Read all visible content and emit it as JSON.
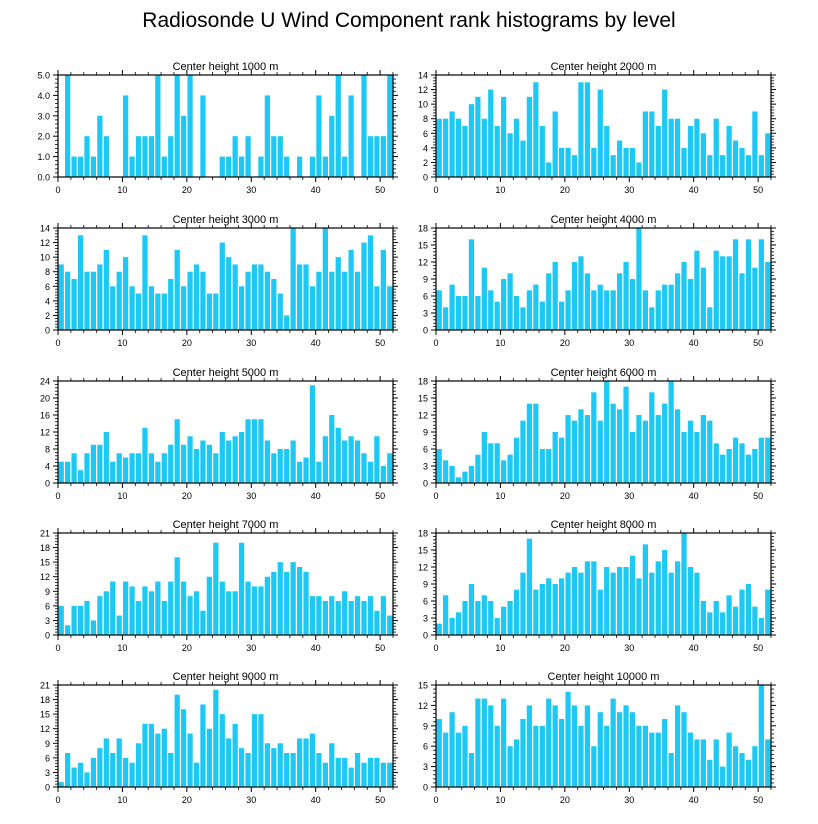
{
  "figure": {
    "title": "Radiosonde U Wind Component rank histograms by level",
    "bar_color": "#1ec8f5",
    "axis_color": "#000000"
  },
  "chart_data": [
    {
      "type": "bar",
      "title": "Center height 1000 m",
      "x": [
        0,
        1,
        2,
        3,
        4,
        5,
        6,
        7,
        8,
        9,
        10,
        11,
        12,
        13,
        14,
        15,
        16,
        17,
        18,
        19,
        20,
        21,
        22,
        23,
        24,
        25,
        26,
        27,
        28,
        29,
        30,
        31,
        32,
        33,
        34,
        35,
        36,
        37,
        38,
        39,
        40,
        41,
        42,
        43,
        44,
        45,
        46,
        47,
        48,
        49,
        50,
        51
      ],
      "values": [
        0,
        5,
        1,
        1,
        2,
        1,
        3,
        2,
        0,
        0,
        4,
        1,
        2,
        2,
        2,
        5,
        1,
        2,
        5,
        3,
        5,
        0,
        4,
        0,
        0,
        1,
        1,
        2,
        1,
        2,
        0,
        1,
        4,
        2,
        2,
        1,
        0,
        1,
        0,
        1,
        4,
        1,
        3,
        5,
        1,
        4,
        0,
        5,
        2,
        2,
        2,
        5
      ],
      "xlim": [
        0,
        52
      ],
      "ylim": [
        0,
        5
      ],
      "yticks": [
        0,
        1,
        2,
        3,
        4,
        5
      ],
      "ytick_labels": [
        "0.0",
        "1.0",
        "2.0",
        "3.0",
        "4.0",
        "5.0"
      ],
      "xticks": [
        0,
        10,
        20,
        30,
        40,
        50
      ],
      "xtick_labels": [
        "0",
        "10",
        "20",
        "30",
        "40",
        "50"
      ]
    },
    {
      "type": "bar",
      "title": "Center height 2000 m",
      "x": [
        0,
        1,
        2,
        3,
        4,
        5,
        6,
        7,
        8,
        9,
        10,
        11,
        12,
        13,
        14,
        15,
        16,
        17,
        18,
        19,
        20,
        21,
        22,
        23,
        24,
        25,
        26,
        27,
        28,
        29,
        30,
        31,
        32,
        33,
        34,
        35,
        36,
        37,
        38,
        39,
        40,
        41,
        42,
        43,
        44,
        45,
        46,
        47,
        48,
        49,
        50,
        51
      ],
      "values": [
        8,
        8,
        9,
        8,
        7,
        10,
        11,
        8,
        12,
        7,
        11,
        6,
        8,
        5,
        11,
        13,
        7,
        2,
        9,
        4,
        4,
        3,
        13,
        13,
        4,
        12,
        7,
        3,
        5,
        4,
        4,
        2,
        9,
        9,
        7,
        12,
        8,
        8,
        4,
        7,
        8,
        6,
        3,
        8,
        3,
        7,
        5,
        4,
        3,
        9,
        3,
        6
      ],
      "xlim": [
        0,
        52
      ],
      "ylim": [
        0,
        14
      ],
      "yticks": [
        0,
        2,
        4,
        6,
        8,
        10,
        12,
        14
      ],
      "ytick_labels": [
        "0",
        "2",
        "4",
        "6",
        "8",
        "10",
        "12",
        "14"
      ],
      "xticks": [
        0,
        10,
        20,
        30,
        40,
        50
      ],
      "xtick_labels": [
        "0",
        "10",
        "20",
        "30",
        "40",
        "50"
      ]
    },
    {
      "type": "bar",
      "title": "Center height 3000 m",
      "x": [
        0,
        1,
        2,
        3,
        4,
        5,
        6,
        7,
        8,
        9,
        10,
        11,
        12,
        13,
        14,
        15,
        16,
        17,
        18,
        19,
        20,
        21,
        22,
        23,
        24,
        25,
        26,
        27,
        28,
        29,
        30,
        31,
        32,
        33,
        34,
        35,
        36,
        37,
        38,
        39,
        40,
        41,
        42,
        43,
        44,
        45,
        46,
        47,
        48,
        49,
        50,
        51
      ],
      "values": [
        9,
        8,
        7,
        13,
        8,
        8,
        9,
        11,
        6,
        8,
        10,
        6,
        5,
        13,
        6,
        5,
        5,
        7,
        11,
        6,
        8,
        9,
        8,
        5,
        5,
        12,
        10,
        9,
        6,
        8,
        9,
        9,
        8,
        7,
        5,
        2,
        14,
        9,
        9,
        6,
        8,
        14,
        8,
        10,
        8,
        11,
        8,
        12,
        13,
        6,
        11,
        6
      ],
      "xlim": [
        0,
        52
      ],
      "ylim": [
        0,
        14
      ],
      "yticks": [
        0,
        2,
        4,
        6,
        8,
        10,
        12,
        14
      ],
      "ytick_labels": [
        "0",
        "2",
        "4",
        "6",
        "8",
        "10",
        "12",
        "14"
      ],
      "xticks": [
        0,
        10,
        20,
        30,
        40,
        50
      ],
      "xtick_labels": [
        "0",
        "10",
        "20",
        "30",
        "40",
        "50"
      ]
    },
    {
      "type": "bar",
      "title": "Center height 4000 m",
      "x": [
        0,
        1,
        2,
        3,
        4,
        5,
        6,
        7,
        8,
        9,
        10,
        11,
        12,
        13,
        14,
        15,
        16,
        17,
        18,
        19,
        20,
        21,
        22,
        23,
        24,
        25,
        26,
        27,
        28,
        29,
        30,
        31,
        32,
        33,
        34,
        35,
        36,
        37,
        38,
        39,
        40,
        41,
        42,
        43,
        44,
        45,
        46,
        47,
        48,
        49,
        50,
        51
      ],
      "values": [
        7,
        4,
        8,
        6,
        6,
        16,
        6,
        11,
        7,
        5,
        9,
        10,
        6,
        4,
        7,
        8,
        5,
        10,
        12,
        5,
        7,
        12,
        13,
        10,
        7,
        8,
        7,
        7,
        10,
        12,
        9,
        18,
        7,
        4,
        7,
        8,
        8,
        10,
        12,
        9,
        14,
        11,
        4,
        14,
        13,
        13,
        16,
        10,
        16,
        11,
        16,
        12
      ],
      "xlim": [
        0,
        52
      ],
      "ylim": [
        0,
        18
      ],
      "yticks": [
        0,
        3,
        6,
        9,
        12,
        15,
        18
      ],
      "ytick_labels": [
        "0",
        "3",
        "6",
        "9",
        "12",
        "15",
        "18"
      ],
      "xticks": [
        0,
        10,
        20,
        30,
        40,
        50
      ],
      "xtick_labels": [
        "0",
        "10",
        "20",
        "30",
        "40",
        "50"
      ]
    },
    {
      "type": "bar",
      "title": "Center height 5000 m",
      "x": [
        0,
        1,
        2,
        3,
        4,
        5,
        6,
        7,
        8,
        9,
        10,
        11,
        12,
        13,
        14,
        15,
        16,
        17,
        18,
        19,
        20,
        21,
        22,
        23,
        24,
        25,
        26,
        27,
        28,
        29,
        30,
        31,
        32,
        33,
        34,
        35,
        36,
        37,
        38,
        39,
        40,
        41,
        42,
        43,
        44,
        45,
        46,
        47,
        48,
        49,
        50,
        51
      ],
      "values": [
        5,
        5,
        7,
        3,
        7,
        9,
        9,
        12,
        5,
        7,
        6,
        7,
        7,
        13,
        7,
        5,
        7,
        9,
        15,
        9,
        11,
        8,
        10,
        9,
        7,
        12,
        10,
        11,
        12,
        15,
        15,
        15,
        10,
        7,
        8,
        8,
        10,
        5,
        6,
        23,
        5,
        11,
        16,
        13,
        10,
        11,
        10,
        7,
        5,
        11,
        4,
        7
      ],
      "xlim": [
        0,
        52
      ],
      "ylim": [
        0,
        24
      ],
      "yticks": [
        0,
        4,
        8,
        12,
        16,
        20,
        24
      ],
      "ytick_labels": [
        "0",
        "4",
        "8",
        "12",
        "16",
        "20",
        "24"
      ],
      "xticks": [
        0,
        10,
        20,
        30,
        40,
        50
      ],
      "xtick_labels": [
        "0",
        "10",
        "20",
        "30",
        "40",
        "50"
      ]
    },
    {
      "type": "bar",
      "title": "Center height 6000 m",
      "x": [
        0,
        1,
        2,
        3,
        4,
        5,
        6,
        7,
        8,
        9,
        10,
        11,
        12,
        13,
        14,
        15,
        16,
        17,
        18,
        19,
        20,
        21,
        22,
        23,
        24,
        25,
        26,
        27,
        28,
        29,
        30,
        31,
        32,
        33,
        34,
        35,
        36,
        37,
        38,
        39,
        40,
        41,
        42,
        43,
        44,
        45,
        46,
        47,
        48,
        49,
        50,
        51
      ],
      "values": [
        6,
        4,
        3,
        1,
        2,
        3,
        5,
        9,
        7,
        7,
        4,
        5,
        8,
        11,
        14,
        14,
        6,
        6,
        9,
        8,
        12,
        11,
        13,
        12,
        16,
        11,
        18,
        14,
        13,
        17,
        9,
        12,
        11,
        16,
        12,
        14,
        18,
        13,
        9,
        11,
        9,
        12,
        11,
        7,
        5,
        6,
        8,
        7,
        5,
        6,
        8,
        8
      ],
      "xlim": [
        0,
        52
      ],
      "ylim": [
        0,
        18
      ],
      "yticks": [
        0,
        3,
        6,
        9,
        12,
        15,
        18
      ],
      "ytick_labels": [
        "0",
        "3",
        "6",
        "9",
        "12",
        "15",
        "18"
      ],
      "xticks": [
        0,
        10,
        20,
        30,
        40,
        50
      ],
      "xtick_labels": [
        "0",
        "10",
        "20",
        "30",
        "40",
        "50"
      ]
    },
    {
      "type": "bar",
      "title": "Center height 7000 m",
      "x": [
        0,
        1,
        2,
        3,
        4,
        5,
        6,
        7,
        8,
        9,
        10,
        11,
        12,
        13,
        14,
        15,
        16,
        17,
        18,
        19,
        20,
        21,
        22,
        23,
        24,
        25,
        26,
        27,
        28,
        29,
        30,
        31,
        32,
        33,
        34,
        35,
        36,
        37,
        38,
        39,
        40,
        41,
        42,
        43,
        44,
        45,
        46,
        47,
        48,
        49,
        50,
        51
      ],
      "values": [
        6,
        2,
        6,
        6,
        7,
        3,
        8,
        9,
        11,
        4,
        11,
        10,
        7,
        10,
        9,
        11,
        7,
        11,
        16,
        11,
        8,
        9,
        5,
        12,
        19,
        11,
        9,
        9,
        19,
        11,
        10,
        10,
        12,
        13,
        15,
        13,
        15,
        14,
        13,
        8,
        8,
        7,
        8,
        7,
        9,
        7,
        8,
        7,
        8,
        5,
        8,
        4
      ],
      "xlim": [
        0,
        52
      ],
      "ylim": [
        0,
        21
      ],
      "yticks": [
        0,
        3,
        6,
        9,
        12,
        15,
        18,
        21
      ],
      "ytick_labels": [
        "0",
        "3",
        "6",
        "9",
        "12",
        "15",
        "18",
        "21"
      ],
      "xticks": [
        0,
        10,
        20,
        30,
        40,
        50
      ],
      "xtick_labels": [
        "0",
        "10",
        "20",
        "30",
        "40",
        "50"
      ]
    },
    {
      "type": "bar",
      "title": "Center height 8000 m",
      "x": [
        0,
        1,
        2,
        3,
        4,
        5,
        6,
        7,
        8,
        9,
        10,
        11,
        12,
        13,
        14,
        15,
        16,
        17,
        18,
        19,
        20,
        21,
        22,
        23,
        24,
        25,
        26,
        27,
        28,
        29,
        30,
        31,
        32,
        33,
        34,
        35,
        36,
        37,
        38,
        39,
        40,
        41,
        42,
        43,
        44,
        45,
        46,
        47,
        48,
        49,
        50,
        51
      ],
      "values": [
        2,
        7,
        3,
        4,
        6,
        9,
        6,
        7,
        6,
        3,
        5,
        6,
        8,
        11,
        17,
        8,
        9,
        10,
        9,
        10,
        11,
        12,
        11,
        13,
        13,
        8,
        12,
        11,
        12,
        12,
        14,
        10,
        16,
        11,
        13,
        15,
        11,
        13,
        18,
        12,
        11,
        6,
        4,
        6,
        4,
        7,
        5,
        8,
        9,
        5,
        3,
        8
      ],
      "xlim": [
        0,
        52
      ],
      "ylim": [
        0,
        18
      ],
      "yticks": [
        0,
        3,
        6,
        9,
        12,
        15,
        18
      ],
      "ytick_labels": [
        "0",
        "3",
        "6",
        "9",
        "12",
        "15",
        "18"
      ],
      "xticks": [
        0,
        10,
        20,
        30,
        40,
        50
      ],
      "xtick_labels": [
        "0",
        "10",
        "20",
        "30",
        "40",
        "50"
      ]
    },
    {
      "type": "bar",
      "title": "Center height 9000 m",
      "x": [
        0,
        1,
        2,
        3,
        4,
        5,
        6,
        7,
        8,
        9,
        10,
        11,
        12,
        13,
        14,
        15,
        16,
        17,
        18,
        19,
        20,
        21,
        22,
        23,
        24,
        25,
        26,
        27,
        28,
        29,
        30,
        31,
        32,
        33,
        34,
        35,
        36,
        37,
        38,
        39,
        40,
        41,
        42,
        43,
        44,
        45,
        46,
        47,
        48,
        49,
        50,
        51
      ],
      "values": [
        1,
        7,
        4,
        5,
        3,
        6,
        8,
        10,
        7,
        10,
        6,
        5,
        9,
        13,
        13,
        11,
        12,
        7,
        19,
        16,
        11,
        5,
        17,
        12,
        20,
        15,
        10,
        13,
        8,
        7,
        15,
        15,
        9,
        8,
        9,
        7,
        7,
        10,
        10,
        11,
        7,
        5,
        9,
        6,
        6,
        4,
        7,
        5,
        6,
        6,
        5,
        5
      ],
      "xlim": [
        0,
        52
      ],
      "ylim": [
        0,
        21
      ],
      "yticks": [
        0,
        3,
        6,
        9,
        12,
        15,
        18,
        21
      ],
      "ytick_labels": [
        "0",
        "3",
        "6",
        "9",
        "12",
        "15",
        "18",
        "21"
      ],
      "xticks": [
        0,
        10,
        20,
        30,
        40,
        50
      ],
      "xtick_labels": [
        "0",
        "10",
        "20",
        "30",
        "40",
        "50"
      ]
    },
    {
      "type": "bar",
      "title": "Center height 10000 m",
      "x": [
        0,
        1,
        2,
        3,
        4,
        5,
        6,
        7,
        8,
        9,
        10,
        11,
        12,
        13,
        14,
        15,
        16,
        17,
        18,
        19,
        20,
        21,
        22,
        23,
        24,
        25,
        26,
        27,
        28,
        29,
        30,
        31,
        32,
        33,
        34,
        35,
        36,
        37,
        38,
        39,
        40,
        41,
        42,
        43,
        44,
        45,
        46,
        47,
        48,
        49,
        50,
        51
      ],
      "values": [
        10,
        8,
        11,
        8,
        9,
        5,
        13,
        13,
        12,
        9,
        13,
        6,
        7,
        10,
        12,
        9,
        9,
        13,
        12,
        10,
        14,
        12,
        9,
        12,
        6,
        11,
        9,
        13,
        11,
        12,
        11,
        9,
        9,
        8,
        8,
        10,
        5,
        12,
        11,
        8,
        7,
        7,
        4,
        7,
        3,
        8,
        6,
        5,
        4,
        6,
        15,
        7
      ],
      "xlim": [
        0,
        52
      ],
      "ylim": [
        0,
        15
      ],
      "yticks": [
        0,
        3,
        6,
        9,
        12,
        15
      ],
      "ytick_labels": [
        "0",
        "3",
        "6",
        "9",
        "12",
        "15"
      ],
      "xticks": [
        0,
        10,
        20,
        30,
        40,
        50
      ],
      "xtick_labels": [
        "0",
        "10",
        "20",
        "30",
        "40",
        "50"
      ]
    }
  ]
}
